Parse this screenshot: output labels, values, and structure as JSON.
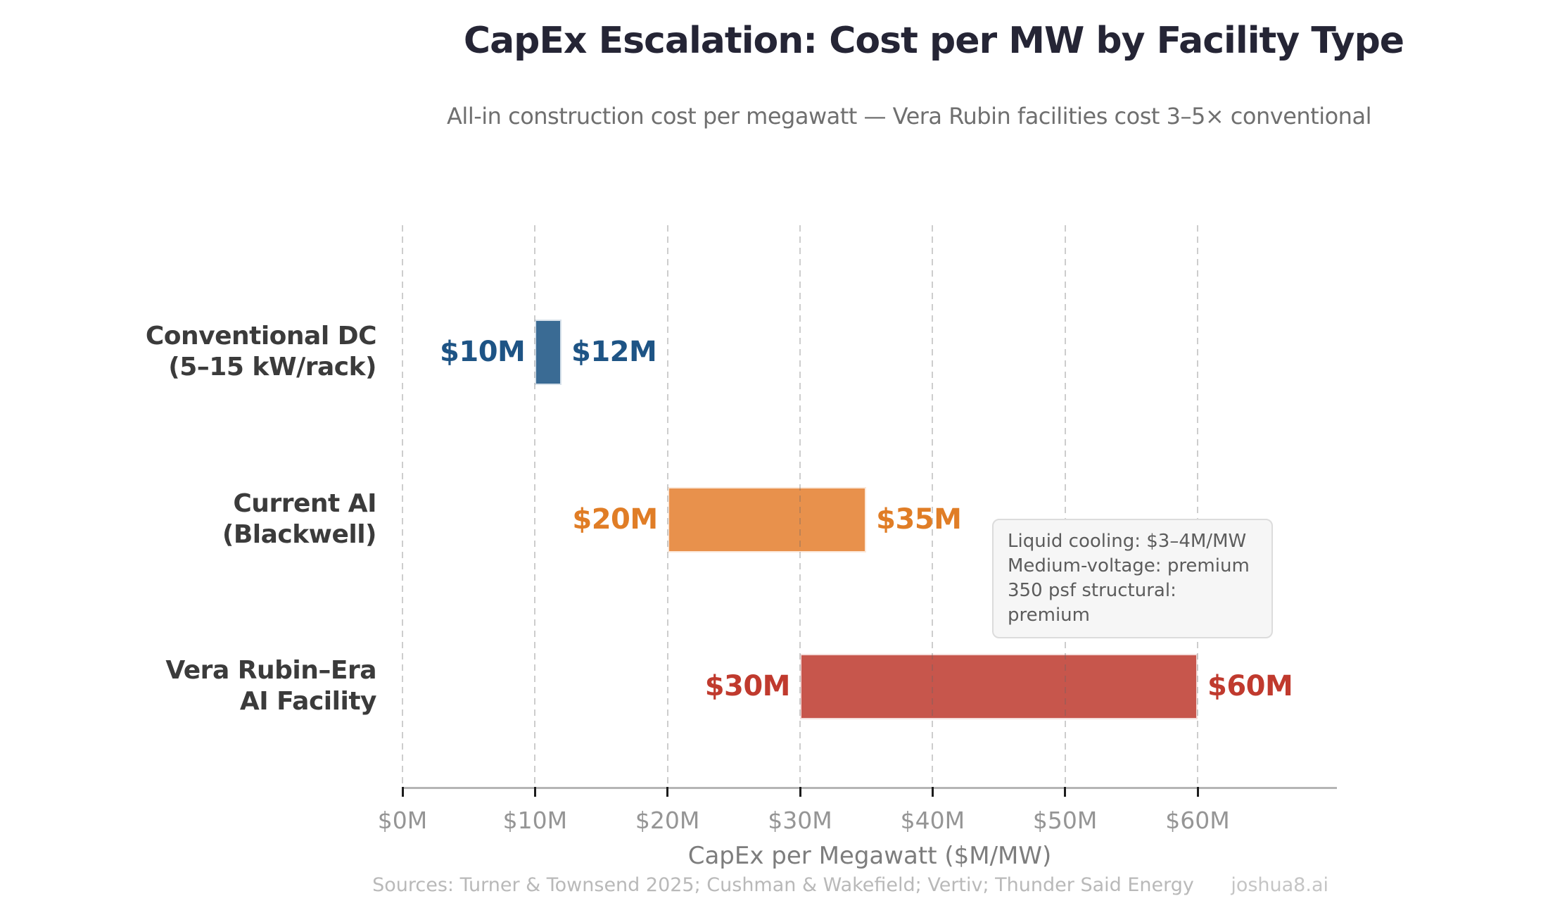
{
  "header": {
    "title": "CapEx Escalation: Cost per MW by Facility Type",
    "subtitle": "All-in construction cost per megawatt — Vera Rubin facilities cost 3–5× conventional"
  },
  "chart_data": {
    "type": "bar",
    "variant": "horizontal-range-bars",
    "title": "CapEx Escalation: Cost per MW by Facility Type",
    "xlabel": "CapEx per Megawatt ($M/MW)",
    "xlim": [
      0,
      70
    ],
    "grid": "vertical dashed gridlines every $10M, drawn over bars",
    "grid_values": [
      0,
      10,
      20,
      30,
      40,
      50,
      60
    ],
    "x_ticks": [
      {
        "value": 0,
        "label": "$0M"
      },
      {
        "value": 10,
        "label": "$10M"
      },
      {
        "value": 20,
        "label": "$20M"
      },
      {
        "value": 30,
        "label": "$30M"
      },
      {
        "value": 40,
        "label": "$40M"
      },
      {
        "value": 50,
        "label": "$50M"
      },
      {
        "value": 60,
        "label": "$60M"
      }
    ],
    "rows": [
      {
        "category_lines": [
          "Conventional DC",
          "(5–15 kW/rack)"
        ],
        "min": 10,
        "max": 12,
        "min_label": "$10M",
        "max_label": "$12M",
        "bar_color": "#3a6b94",
        "label_color": "#1e5485"
      },
      {
        "category_lines": [
          "Current AI",
          "(Blackwell)"
        ],
        "min": 20,
        "max": 35,
        "min_label": "$20M",
        "max_label": "$35M",
        "bar_color": "#e8914c",
        "label_color": "#e07d26"
      },
      {
        "category_lines": [
          "Vera Rubin–Era",
          "AI Facility"
        ],
        "min": 30,
        "max": 60,
        "min_label": "$30M",
        "max_label": "$60M",
        "bar_color": "#c7564c",
        "label_color": "#c03a2e"
      }
    ]
  },
  "annotation": {
    "lines": [
      "Liquid cooling: $3–4M/MW",
      "Medium-voltage: premium",
      "350 psf structural: premium"
    ]
  },
  "footer": {
    "sources": "Sources: Turner & Townsend 2025; Cushman & Wakefield; Vertiv; Thunder Said Energy",
    "brand": "joshua8.ai"
  }
}
